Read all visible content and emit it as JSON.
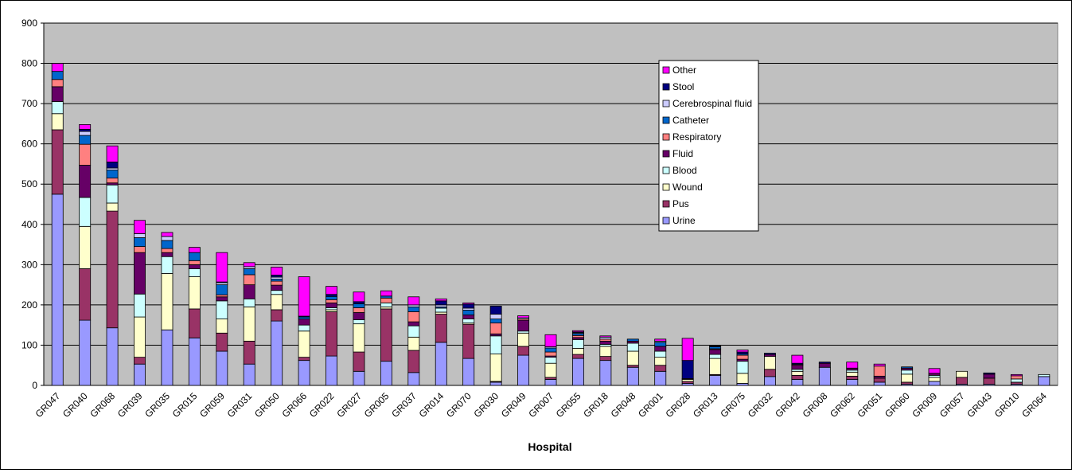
{
  "chart_data": {
    "type": "bar",
    "stacked": true,
    "title": "",
    "xlabel": "Hospital",
    "ylabel": "",
    "ylim": [
      0,
      900
    ],
    "yticks": [
      0,
      100,
      200,
      300,
      400,
      500,
      600,
      700,
      800,
      900
    ],
    "grid": true,
    "legend_position": "top-right",
    "plot_background": "#c0c0c0",
    "categories": [
      "GR047",
      "GR040",
      "GR068",
      "GR039",
      "GR035",
      "GR015",
      "GR059",
      "GR031",
      "GR050",
      "GR066",
      "GR022",
      "GR027",
      "GR005",
      "GR037",
      "GR014",
      "GR070",
      "GR030",
      "GR049",
      "GR007",
      "GR055",
      "GR018",
      "GR048",
      "GR001",
      "GR028",
      "GR013",
      "GR075",
      "GR032",
      "GR042",
      "GR008",
      "GR062",
      "GR051",
      "GR060",
      "GR009",
      "GR057",
      "GR043",
      "GR010",
      "GR064"
    ],
    "series": [
      {
        "name": "Urine",
        "color": "#9999ff",
        "values": [
          475,
          162,
          143,
          53,
          138,
          118,
          85,
          53,
          160,
          62,
          73,
          35,
          60,
          32,
          107,
          67,
          8,
          75,
          15,
          67,
          62,
          45,
          35,
          5,
          25,
          5,
          22,
          15,
          45,
          15,
          8,
          3,
          10,
          3,
          3,
          3,
          22
        ]
      },
      {
        "name": "Pus",
        "color": "#993366",
        "values": [
          160,
          128,
          290,
          17,
          0,
          72,
          45,
          57,
          28,
          8,
          110,
          48,
          130,
          55,
          70,
          85,
          2,
          22,
          5,
          10,
          10,
          5,
          15,
          5,
          2,
          0,
          18,
          10,
          0,
          8,
          10,
          5,
          0,
          17,
          15,
          5,
          0
        ]
      },
      {
        "name": "Wound",
        "color": "#ffffcc",
        "values": [
          40,
          105,
          20,
          100,
          140,
          80,
          35,
          85,
          38,
          65,
          5,
          70,
          5,
          33,
          5,
          3,
          68,
          33,
          35,
          15,
          25,
          35,
          20,
          5,
          40,
          25,
          32,
          10,
          0,
          10,
          0,
          20,
          10,
          15,
          0,
          0,
          0
        ]
      },
      {
        "name": "Blood",
        "color": "#ccffff",
        "values": [
          30,
          72,
          45,
          57,
          42,
          20,
          45,
          20,
          10,
          15,
          5,
          10,
          10,
          28,
          10,
          10,
          45,
          5,
          15,
          22,
          5,
          20,
          15,
          0,
          10,
          30,
          0,
          5,
          0,
          5,
          0,
          10,
          5,
          0,
          0,
          8,
          5
        ]
      },
      {
        "name": "Fluid",
        "color": "#660066",
        "values": [
          37,
          80,
          5,
          103,
          10,
          10,
          10,
          35,
          13,
          15,
          12,
          18,
          0,
          10,
          0,
          10,
          5,
          27,
          3,
          5,
          8,
          5,
          12,
          2,
          12,
          5,
          5,
          10,
          10,
          5,
          5,
          5,
          5,
          0,
          10,
          0,
          0
        ]
      },
      {
        "name": "Respiratory",
        "color": "#ff8080",
        "values": [
          18,
          52,
          12,
          15,
          10,
          10,
          5,
          25,
          10,
          0,
          8,
          12,
          12,
          25,
          0,
          0,
          27,
          3,
          10,
          5,
          5,
          0,
          0,
          0,
          2,
          10,
          0,
          2,
          0,
          0,
          25,
          0,
          0,
          0,
          0,
          8,
          0
        ]
      },
      {
        "name": "Catheter",
        "color": "#0066cc",
        "values": [
          20,
          22,
          20,
          22,
          20,
          20,
          25,
          15,
          5,
          5,
          8,
          10,
          5,
          12,
          3,
          12,
          10,
          0,
          10,
          5,
          0,
          5,
          10,
          0,
          5,
          3,
          0,
          0,
          0,
          0,
          0,
          3,
          0,
          0,
          0,
          0,
          0
        ]
      },
      {
        "name": "Cerebrospinal fluid",
        "color": "#ccccff",
        "values": [
          0,
          10,
          5,
          10,
          10,
          0,
          5,
          5,
          5,
          0,
          0,
          0,
          0,
          5,
          5,
          5,
          12,
          3,
          3,
          2,
          5,
          0,
          3,
          0,
          0,
          0,
          0,
          0,
          0,
          0,
          0,
          0,
          0,
          0,
          0,
          0,
          0
        ]
      },
      {
        "name": "Stool",
        "color": "#000080",
        "values": [
          0,
          5,
          15,
          0,
          0,
          0,
          2,
          0,
          5,
          2,
          5,
          5,
          0,
          0,
          10,
          10,
          20,
          0,
          0,
          2,
          0,
          0,
          0,
          45,
          2,
          5,
          3,
          3,
          3,
          0,
          0,
          0,
          0,
          0,
          3,
          0,
          0
        ]
      },
      {
        "name": "Other",
        "color": "#ff00ff",
        "values": [
          20,
          12,
          40,
          33,
          10,
          13,
          73,
          10,
          20,
          98,
          20,
          24,
          13,
          20,
          5,
          3,
          0,
          5,
          30,
          3,
          3,
          0,
          5,
          55,
          0,
          5,
          0,
          20,
          0,
          15,
          5,
          0,
          12,
          0,
          0,
          3,
          0
        ]
      }
    ]
  }
}
